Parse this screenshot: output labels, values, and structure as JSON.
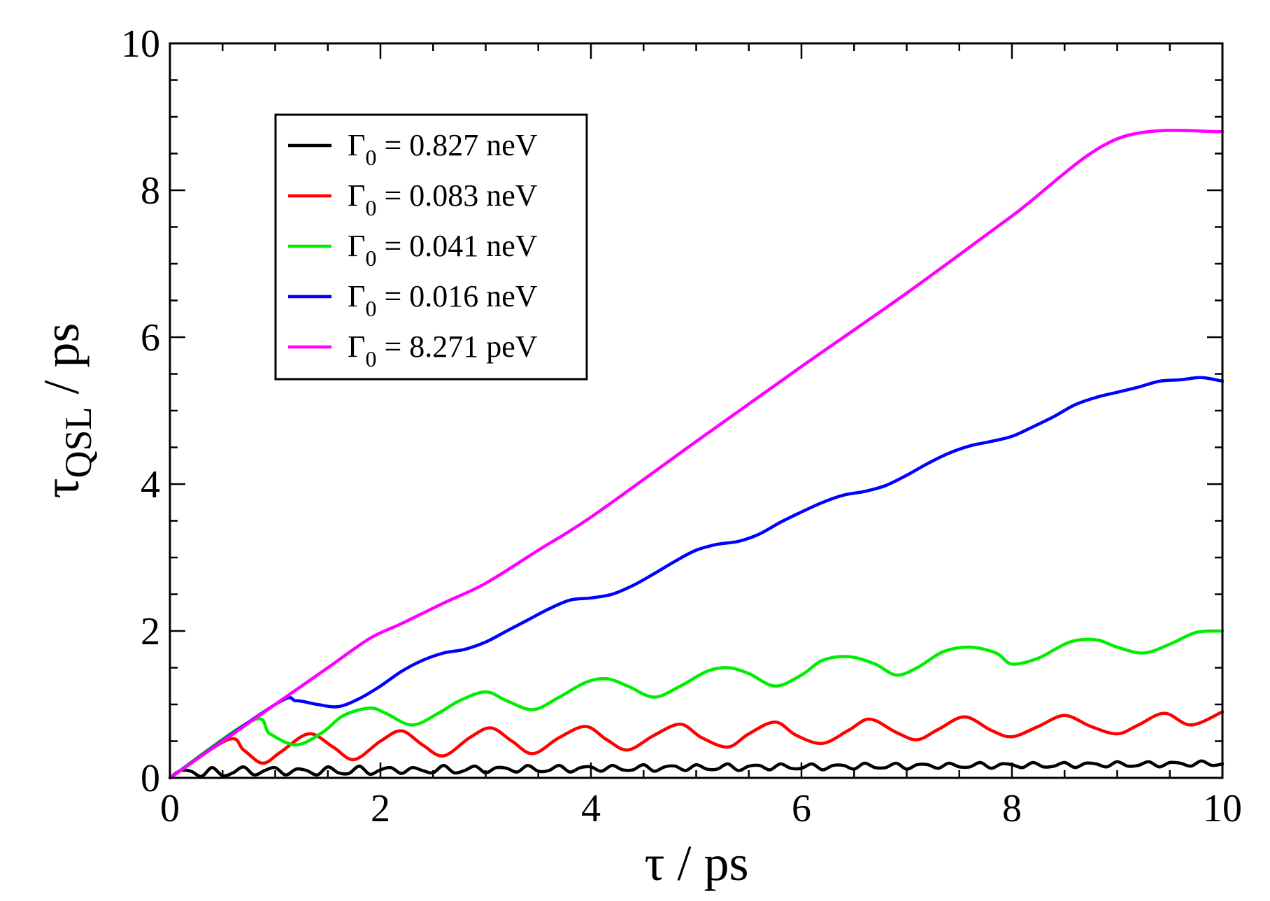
{
  "chart_data": {
    "type": "line",
    "title": "",
    "xlabel": {
      "symbol": "τ",
      "unit": " / ps"
    },
    "ylabel": {
      "symbol": "τ",
      "subscript": "QSL",
      "unit": " / ps"
    },
    "xlim": [
      0,
      10
    ],
    "ylim": [
      0,
      10
    ],
    "xticks": [
      "0",
      "2",
      "4",
      "6",
      "8",
      "10"
    ],
    "yticks": [
      "0",
      "2",
      "4",
      "6",
      "8",
      "10"
    ],
    "grid": false,
    "legend_position": "top-left",
    "series": [
      {
        "name": "Γ0 = 0.827 neV",
        "legend_symbol": "Γ",
        "legend_sub": "0",
        "legend_rest": " = 0.827 neV",
        "color": "#000000",
        "x": [
          0,
          0.1,
          0.2,
          0.3,
          0.4,
          0.5,
          0.6,
          0.7,
          0.8,
          0.9,
          1.0,
          1.1,
          1.2,
          1.3,
          1.4,
          1.5,
          1.6,
          1.7,
          1.8,
          1.9,
          2.0,
          2.1,
          2.2,
          2.3,
          2.4,
          2.5,
          2.6,
          2.7,
          2.8,
          2.9,
          3.0,
          3.1,
          3.2,
          3.3,
          3.4,
          3.5,
          3.6,
          3.7,
          3.8,
          3.9,
          4.0,
          4.1,
          4.2,
          4.3,
          4.4,
          4.5,
          4.6,
          4.7,
          4.8,
          4.9,
          5.0,
          5.1,
          5.2,
          5.3,
          5.4,
          5.5,
          5.6,
          5.7,
          5.8,
          5.9,
          6.0,
          6.1,
          6.2,
          6.3,
          6.4,
          6.5,
          6.6,
          6.7,
          6.8,
          6.9,
          7.0,
          7.1,
          7.2,
          7.3,
          7.4,
          7.5,
          7.6,
          7.7,
          7.8,
          7.9,
          8.0,
          8.1,
          8.2,
          8.3,
          8.4,
          8.5,
          8.6,
          8.7,
          8.8,
          8.9,
          9.0,
          9.1,
          9.2,
          9.3,
          9.4,
          9.5,
          9.6,
          9.7,
          9.8,
          9.9,
          10.0
        ],
        "y": [
          0,
          0.1,
          0.09,
          0.02,
          0.14,
          0.03,
          0.07,
          0.15,
          0.04,
          0.1,
          0.14,
          0.04,
          0.12,
          0.1,
          0.04,
          0.15,
          0.07,
          0.06,
          0.16,
          0.05,
          0.11,
          0.14,
          0.06,
          0.14,
          0.1,
          0.07,
          0.17,
          0.07,
          0.1,
          0.16,
          0.07,
          0.14,
          0.13,
          0.08,
          0.17,
          0.09,
          0.1,
          0.17,
          0.08,
          0.14,
          0.15,
          0.09,
          0.17,
          0.11,
          0.11,
          0.18,
          0.09,
          0.15,
          0.16,
          0.1,
          0.18,
          0.12,
          0.12,
          0.19,
          0.1,
          0.16,
          0.17,
          0.11,
          0.19,
          0.13,
          0.13,
          0.19,
          0.11,
          0.17,
          0.17,
          0.12,
          0.2,
          0.14,
          0.14,
          0.2,
          0.12,
          0.18,
          0.18,
          0.13,
          0.2,
          0.15,
          0.15,
          0.21,
          0.13,
          0.19,
          0.18,
          0.14,
          0.21,
          0.15,
          0.16,
          0.21,
          0.14,
          0.2,
          0.19,
          0.15,
          0.22,
          0.16,
          0.17,
          0.22,
          0.15,
          0.21,
          0.2,
          0.16,
          0.23,
          0.17,
          0.19
        ]
      },
      {
        "name": "Γ0 = 0.083 neV",
        "legend_symbol": "Γ",
        "legend_sub": "0",
        "legend_rest": " = 0.083 neV",
        "color": "#ff0000",
        "x": [
          0,
          0.55,
          0.7,
          0.88,
          1.05,
          1.32,
          1.55,
          1.75,
          2.0,
          2.2,
          2.4,
          2.6,
          2.85,
          3.05,
          3.25,
          3.45,
          3.7,
          3.95,
          4.15,
          4.35,
          4.6,
          4.85,
          5.05,
          5.3,
          5.5,
          5.75,
          5.95,
          6.2,
          6.45,
          6.65,
          6.9,
          7.1,
          7.3,
          7.55,
          7.8,
          8.0,
          8.25,
          8.5,
          8.75,
          9.0,
          9.2,
          9.45,
          9.7,
          10.0
        ],
        "y": [
          0,
          0.52,
          0.38,
          0.2,
          0.35,
          0.6,
          0.42,
          0.25,
          0.5,
          0.64,
          0.45,
          0.3,
          0.55,
          0.68,
          0.5,
          0.33,
          0.55,
          0.7,
          0.52,
          0.38,
          0.58,
          0.73,
          0.55,
          0.42,
          0.6,
          0.76,
          0.58,
          0.47,
          0.65,
          0.8,
          0.62,
          0.52,
          0.66,
          0.83,
          0.65,
          0.56,
          0.7,
          0.85,
          0.7,
          0.6,
          0.72,
          0.88,
          0.72,
          0.9
        ]
      },
      {
        "name": "Γ0 = 0.041 neV",
        "legend_symbol": "Γ",
        "legend_sub": "0",
        "legend_rest": " = 0.041 neV",
        "color": "#00ee00",
        "x": [
          0,
          0.78,
          0.95,
          1.2,
          1.45,
          1.65,
          1.9,
          2.05,
          2.3,
          2.55,
          2.75,
          3.0,
          3.2,
          3.45,
          3.7,
          3.95,
          4.15,
          4.35,
          4.6,
          4.85,
          5.1,
          5.3,
          5.5,
          5.75,
          6.0,
          6.2,
          6.45,
          6.7,
          6.9,
          7.1,
          7.35,
          7.6,
          7.85,
          8.0,
          8.25,
          8.55,
          8.8,
          9.0,
          9.25,
          9.5,
          9.75,
          10.0
        ],
        "y": [
          0,
          0.78,
          0.6,
          0.45,
          0.62,
          0.85,
          0.95,
          0.88,
          0.72,
          0.88,
          1.05,
          1.17,
          1.05,
          0.93,
          1.1,
          1.3,
          1.35,
          1.25,
          1.1,
          1.25,
          1.45,
          1.5,
          1.42,
          1.25,
          1.4,
          1.6,
          1.65,
          1.55,
          1.4,
          1.5,
          1.72,
          1.78,
          1.7,
          1.55,
          1.63,
          1.85,
          1.88,
          1.78,
          1.7,
          1.82,
          1.98,
          2.0
        ]
      },
      {
        "name": "Γ0 = 0.016 neV",
        "legend_symbol": "Γ",
        "legend_sub": "0",
        "legend_rest": " = 0.016 neV",
        "color": "#0000ff",
        "x": [
          0,
          1.0,
          1.2,
          1.4,
          1.6,
          1.8,
          2.0,
          2.2,
          2.4,
          2.6,
          2.8,
          3.0,
          3.2,
          3.4,
          3.6,
          3.8,
          4.0,
          4.2,
          4.4,
          4.6,
          4.8,
          5.0,
          5.2,
          5.4,
          5.6,
          5.8,
          6.0,
          6.2,
          6.4,
          6.6,
          6.8,
          7.0,
          7.2,
          7.4,
          7.6,
          7.8,
          8.0,
          8.2,
          8.4,
          8.6,
          8.8,
          9.0,
          9.2,
          9.4,
          9.6,
          9.8,
          10.0
        ],
        "y": [
          0,
          1.0,
          1.05,
          1.0,
          0.97,
          1.08,
          1.25,
          1.45,
          1.6,
          1.7,
          1.75,
          1.85,
          2.0,
          2.15,
          2.3,
          2.42,
          2.45,
          2.5,
          2.62,
          2.78,
          2.95,
          3.1,
          3.18,
          3.22,
          3.32,
          3.48,
          3.62,
          3.75,
          3.85,
          3.9,
          3.98,
          4.12,
          4.28,
          4.42,
          4.52,
          4.58,
          4.65,
          4.78,
          4.92,
          5.08,
          5.18,
          5.25,
          5.32,
          5.4,
          5.42,
          5.45,
          5.4
        ]
      },
      {
        "name": "Γ0 = 8.271 peV",
        "legend_symbol": "Γ",
        "legend_sub": "0",
        "legend_rest": " = 8.271 peV",
        "color": "#ff00ff",
        "x": [
          0,
          1.0,
          1.5,
          1.9,
          2.2,
          2.6,
          3.0,
          3.5,
          4.0,
          5.0,
          6.0,
          7.0,
          8.0,
          9.0,
          10.0
        ],
        "y": [
          0,
          1.0,
          1.5,
          1.9,
          2.1,
          2.38,
          2.65,
          3.1,
          3.55,
          4.58,
          5.6,
          6.6,
          7.65,
          8.7,
          8.8
        ]
      }
    ]
  }
}
